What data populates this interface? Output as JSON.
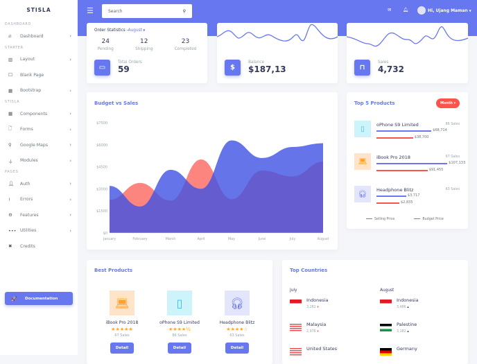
{
  "brand": "STISLA",
  "sidebar": {
    "sections": [
      {
        "title": "DASHBOARD",
        "items": [
          {
            "label": "Dashboard",
            "icon": "fire-icon",
            "chevron": true
          }
        ]
      },
      {
        "title": "STARTER",
        "items": [
          {
            "label": "Layout",
            "icon": "columns-icon",
            "chevron": true
          },
          {
            "label": "Blank Page",
            "icon": "square-icon",
            "chevron": false
          },
          {
            "label": "Bootstrap",
            "icon": "th-icon",
            "chevron": true
          }
        ]
      },
      {
        "title": "STISLA",
        "items": [
          {
            "label": "Components",
            "icon": "th-large-icon",
            "chevron": true
          },
          {
            "label": "Forms",
            "icon": "file-icon",
            "chevron": true
          },
          {
            "label": "Google Maps",
            "icon": "map-marker-icon",
            "chevron": true
          },
          {
            "label": "Modules",
            "icon": "plug-icon",
            "chevron": true
          }
        ]
      },
      {
        "title": "PAGES",
        "items": [
          {
            "label": "Auth",
            "icon": "user-icon",
            "chevron": true
          },
          {
            "label": "Errors",
            "icon": "exclamation-icon",
            "chevron": true
          },
          {
            "label": "Features",
            "icon": "bicycle-icon",
            "chevron": true
          },
          {
            "label": "Utilities",
            "icon": "ellipsis-icon",
            "chevron": true
          },
          {
            "label": "Credits",
            "icon": "pencil-ruler-icon",
            "chevron": false
          }
        ]
      }
    ],
    "doc_button": "Documentation"
  },
  "header": {
    "search_placeholder": "Search",
    "user": "Hi, Ujang Maman"
  },
  "order": {
    "title": "Order Statistics -",
    "month": "August",
    "stats": [
      {
        "value": "24",
        "label": "Pending"
      },
      {
        "value": "12",
        "label": "Shipping"
      },
      {
        "value": "23",
        "label": "Completed"
      }
    ],
    "total_label": "Total Orders",
    "total": "59"
  },
  "balance": {
    "label": "Balance",
    "value": "$187,13"
  },
  "sales": {
    "label": "Sales",
    "value": "4,732"
  },
  "chart_data": {
    "type": "area",
    "title": "Budget vs Sales",
    "categories": [
      "January",
      "February",
      "March",
      "April",
      "May",
      "June",
      "July",
      "August"
    ],
    "yticks": [
      "$0",
      "$1500",
      "$3000",
      "$4500",
      "$6000",
      "$7500"
    ],
    "ylim": [
      0,
      7500
    ],
    "series": [
      {
        "name": "Budget",
        "color": "#fc544b",
        "values": [
          2250,
          3400,
          2200,
          5000,
          2300,
          4250,
          3850,
          4850
        ]
      },
      {
        "name": "Sales",
        "color": "#6777ef",
        "values": [
          3200,
          1800,
          4300,
          3000,
          6300,
          5100,
          5850,
          6100
        ]
      }
    ]
  },
  "top5": {
    "title": "Top 5 Products",
    "filter": "Month",
    "items": [
      {
        "name": "oPhone S9 Limited",
        "sales": "86 Sales",
        "selling": "$68,714",
        "budget": "$38,700",
        "sell_frac": 0.72,
        "bud_frac": 0.48,
        "icon": "mobile-icon",
        "bg": "#cdf3fb",
        "fg": "#3abaf4"
      },
      {
        "name": "iBook Pro 2018",
        "sales": "67 Sales",
        "selling": "$107,133",
        "budget": "$91,455",
        "sell_frac": 0.93,
        "bud_frac": 0.67,
        "icon": "laptop-icon",
        "bg": "#ffe4c9",
        "fg": "#ffa426"
      },
      {
        "name": "Headphone Blitz",
        "sales": "63 Sales",
        "selling": "$3,717",
        "budget": "$2,835",
        "sell_frac": 0.39,
        "bud_frac": 0.3,
        "icon": "headphones-icon",
        "bg": "#e3e5fb",
        "fg": "#6777ef"
      }
    ],
    "legend": [
      "Selling Price",
      "Budget Price"
    ]
  },
  "best": {
    "title": "Best Products",
    "items": [
      {
        "name": "iBook Pro 2018",
        "stars": "★★★★★",
        "sales": "67 Sales",
        "button": "Detail",
        "icon": "laptop-icon",
        "bg": "#ffe4c9",
        "fg": "#ffa426"
      },
      {
        "name": "oPhone S9 Limited",
        "stars": "★★★★½",
        "sales": "86 Sales",
        "button": "Detail",
        "icon": "mobile-icon",
        "bg": "#cdf3fb",
        "fg": "#3abaf4"
      },
      {
        "name": "Headphone Blitz",
        "stars": "★★★★☆",
        "sales": "63 Sales",
        "button": "Detail",
        "icon": "headphones-icon",
        "bg": "#e3e5fb",
        "fg": "#6777ef"
      }
    ]
  },
  "countries": {
    "title": "Top Countries",
    "columns": [
      {
        "month": "July",
        "items": [
          {
            "name": "Indonesia",
            "value": "3,282",
            "trend": "down"
          },
          {
            "name": "Malaysia",
            "value": "2,976",
            "trend": "down"
          },
          {
            "name": "United States",
            "value": "",
            "trend": ""
          }
        ]
      },
      {
        "month": "August",
        "items": [
          {
            "name": "Indonesia",
            "value": "3,486",
            "trend": "up"
          },
          {
            "name": "Palestine",
            "value": "3,182",
            "trend": "up"
          },
          {
            "name": "Germany",
            "value": "",
            "trend": ""
          }
        ]
      }
    ]
  }
}
